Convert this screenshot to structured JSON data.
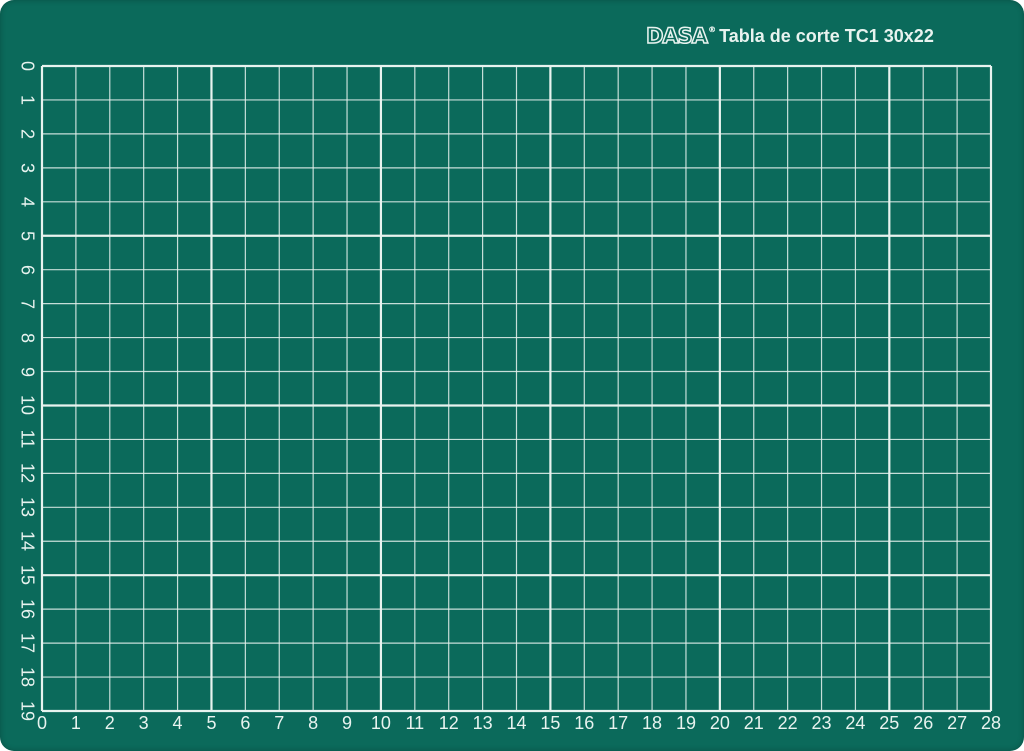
{
  "brand": {
    "logo": "DASA",
    "registered": "®",
    "title": "Tabla de corte TC1 30x22"
  },
  "grid": {
    "x_max": 28,
    "y_max": 19,
    "major_every": 5
  },
  "colors": {
    "mat": "#0b6a5b",
    "lines": "#e8f3ef"
  }
}
